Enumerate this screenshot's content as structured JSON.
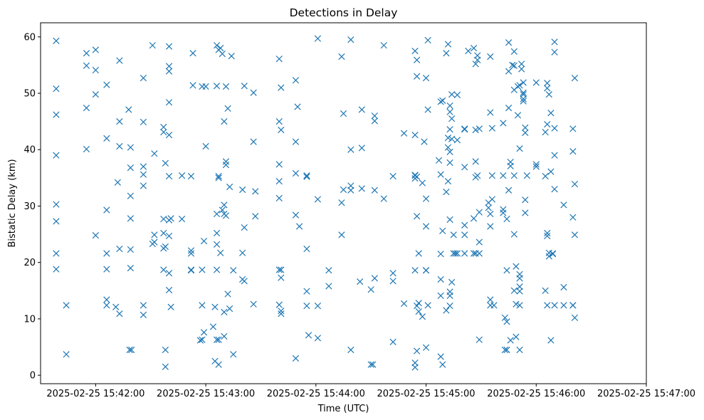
{
  "chart_data": {
    "type": "scatter",
    "title": "Detections in Delay",
    "xlabel": "Time (UTC)",
    "ylabel": "Bistatic Delay (km)",
    "marker": "x",
    "color": "#1f77b4",
    "x_unit": "seconds after 2025-02-25 15:41:30",
    "xlim": [
      0,
      330
    ],
    "ylim": [
      -1.5,
      62.5
    ],
    "x_ticks": [
      {
        "value": 30,
        "label": "2025-02-25 15:42:00"
      },
      {
        "value": 90,
        "label": "2025-02-25 15:43:00"
      },
      {
        "value": 150,
        "label": "2025-02-25 15:44:00"
      },
      {
        "value": 210,
        "label": "2025-02-25 15:45:00"
      },
      {
        "value": 270,
        "label": "2025-02-25 15:46:00"
      },
      {
        "value": 330,
        "label": "2025-02-25 15:47:00"
      }
    ],
    "y_ticks": [
      {
        "value": 0,
        "label": "0"
      },
      {
        "value": 10,
        "label": "10"
      },
      {
        "value": 20,
        "label": "20"
      },
      {
        "value": 30,
        "label": "30"
      },
      {
        "value": 40,
        "label": "40"
      },
      {
        "value": 50,
        "label": "50"
      },
      {
        "value": 60,
        "label": "60"
      }
    ],
    "points": [
      [
        8.5,
        59.3
      ],
      [
        8.5,
        50.8
      ],
      [
        8.5,
        46.2
      ],
      [
        8.5,
        39.0
      ],
      [
        8.5,
        30.3
      ],
      [
        8.5,
        27.3
      ],
      [
        8.5,
        21.6
      ],
      [
        8.5,
        18.8
      ],
      [
        14,
        12.4
      ],
      [
        14,
        3.7
      ],
      [
        25,
        57.1
      ],
      [
        25,
        54.9
      ],
      [
        25,
        47.4
      ],
      [
        25,
        40.1
      ],
      [
        30,
        57.7
      ],
      [
        30,
        54.1
      ],
      [
        30,
        49.8
      ],
      [
        30,
        24.8
      ],
      [
        36,
        51.5
      ],
      [
        36,
        42.0
      ],
      [
        36,
        29.3
      ],
      [
        36,
        21.6
      ],
      [
        36,
        18.8
      ],
      [
        36,
        13.4
      ],
      [
        36,
        12.4
      ],
      [
        41,
        12.1
      ],
      [
        42,
        34.2
      ],
      [
        43,
        55.8
      ],
      [
        43,
        45.0
      ],
      [
        43,
        40.6
      ],
      [
        43,
        22.4
      ],
      [
        43,
        10.9
      ],
      [
        48,
        47.1
      ],
      [
        49,
        40.4
      ],
      [
        49,
        36.8
      ],
      [
        49,
        31.8
      ],
      [
        49,
        27.8
      ],
      [
        49,
        22.3
      ],
      [
        49,
        19.0
      ],
      [
        48.5,
        4.5
      ],
      [
        49.5,
        4.5
      ],
      [
        56,
        52.7
      ],
      [
        56,
        44.9
      ],
      [
        56,
        37.0
      ],
      [
        56,
        35.6
      ],
      [
        56,
        33.6
      ],
      [
        56,
        12.4
      ],
      [
        56,
        10.7
      ],
      [
        61,
        58.5
      ],
      [
        62,
        39.3
      ],
      [
        62,
        24.9
      ],
      [
        62,
        23.6
      ],
      [
        61,
        23.3
      ],
      [
        67,
        25.2
      ],
      [
        67,
        27.7
      ],
      [
        67,
        43.1
      ],
      [
        67,
        44.0
      ],
      [
        68,
        37.6
      ],
      [
        68,
        22.8
      ],
      [
        67,
        22.5
      ],
      [
        67,
        18.7
      ],
      [
        68,
        4.5
      ],
      [
        68,
        1.5
      ],
      [
        70,
        58.3
      ],
      [
        70,
        54.8
      ],
      [
        70,
        53.9
      ],
      [
        70,
        48.4
      ],
      [
        70,
        42.6
      ],
      [
        70,
        35.3
      ],
      [
        70,
        27.5
      ],
      [
        70,
        24.7
      ],
      [
        70,
        18.1
      ],
      [
        70,
        15.1
      ],
      [
        71,
        12.1
      ],
      [
        71,
        27.8
      ],
      [
        77,
        35.4
      ],
      [
        77,
        27.7
      ],
      [
        83,
        57.1
      ],
      [
        83,
        51.4
      ],
      [
        82,
        35.3
      ],
      [
        82,
        22.1
      ],
      [
        82,
        21.6
      ],
      [
        82,
        18.7
      ],
      [
        82,
        18.6
      ],
      [
        88,
        51.2
      ],
      [
        88,
        12.4
      ],
      [
        88,
        18.7
      ],
      [
        87,
        6.2
      ],
      [
        88,
        6.3
      ],
      [
        89,
        7.6
      ],
      [
        89,
        23.8
      ],
      [
        90,
        40.6
      ],
      [
        90,
        51.2
      ],
      [
        96,
        58.5
      ],
      [
        98,
        58.0
      ],
      [
        97,
        57.7
      ],
      [
        99,
        57.0
      ],
      [
        96,
        51.3
      ],
      [
        101,
        51.2
      ],
      [
        104,
        56.6
      ],
      [
        102,
        47.3
      ],
      [
        100,
        45.0
      ],
      [
        101,
        37.9
      ],
      [
        101,
        37.3
      ],
      [
        103,
        33.4
      ],
      [
        97,
        35.3
      ],
      [
        97,
        35.0
      ],
      [
        96,
        28.6
      ],
      [
        100,
        30.2
      ],
      [
        99,
        29.3
      ],
      [
        101,
        28.3
      ],
      [
        100,
        28.6
      ],
      [
        96,
        25.2
      ],
      [
        96,
        23.2
      ],
      [
        96,
        18.7
      ],
      [
        98,
        21.7
      ],
      [
        95,
        12.1
      ],
      [
        100,
        11.2
      ],
      [
        102,
        14.4
      ],
      [
        103,
        11.8
      ],
      [
        105,
        18.6
      ],
      [
        97,
        6.3
      ],
      [
        96,
        6.3
      ],
      [
        100,
        6.9
      ],
      [
        94,
        8.6
      ],
      [
        95,
        2.5
      ],
      [
        97,
        1.9
      ],
      [
        105,
        3.7
      ],
      [
        110,
        32.9
      ],
      [
        111,
        26.2
      ],
      [
        110,
        21.7
      ],
      [
        110,
        17.0
      ],
      [
        111,
        16.7
      ],
      [
        111,
        51.3
      ],
      [
        116,
        50.1
      ],
      [
        116,
        41.4
      ],
      [
        117,
        32.6
      ],
      [
        117,
        28.2
      ],
      [
        116,
        12.6
      ],
      [
        130,
        56.1
      ],
      [
        131,
        51.0
      ],
      [
        130,
        45.0
      ],
      [
        131,
        43.5
      ],
      [
        130,
        37.4
      ],
      [
        130,
        34.4
      ],
      [
        130,
        31.4
      ],
      [
        130,
        18.7
      ],
      [
        131,
        18.7
      ],
      [
        131,
        17.3
      ],
      [
        130,
        12.5
      ],
      [
        131,
        11.4
      ],
      [
        131,
        10.9
      ],
      [
        139,
        52.3
      ],
      [
        139,
        41.4
      ],
      [
        139,
        35.8
      ],
      [
        139,
        28.4
      ],
      [
        141,
        26.4
      ],
      [
        140,
        47.6
      ],
      [
        145,
        35.4
      ],
      [
        145,
        35.2
      ],
      [
        145,
        22.4
      ],
      [
        145,
        14.9
      ],
      [
        145,
        12.3
      ],
      [
        146,
        7.1
      ],
      [
        139,
        3.0
      ],
      [
        151,
        59.7
      ],
      [
        151,
        31.2
      ],
      [
        151,
        12.3
      ],
      [
        151,
        6.6
      ],
      [
        157,
        18.6
      ],
      [
        157,
        15.8
      ],
      [
        164,
        56.5
      ],
      [
        165,
        46.4
      ],
      [
        165,
        32.9
      ],
      [
        164,
        30.6
      ],
      [
        164,
        24.9
      ],
      [
        169,
        59.5
      ],
      [
        169,
        40.0
      ],
      [
        169,
        33.6
      ],
      [
        169,
        32.8
      ],
      [
        169,
        4.5
      ],
      [
        175,
        47.1
      ],
      [
        175,
        40.3
      ],
      [
        175,
        33.1
      ],
      [
        174,
        16.6
      ],
      [
        180,
        15.2
      ],
      [
        180,
        1.9
      ],
      [
        181,
        1.9
      ],
      [
        182,
        46.0
      ],
      [
        182,
        45.1
      ],
      [
        182,
        17.2
      ],
      [
        182,
        32.8
      ],
      [
        187,
        31.3
      ],
      [
        187,
        58.5
      ],
      [
        192,
        35.3
      ],
      [
        192,
        18.1
      ],
      [
        192,
        16.7
      ],
      [
        192,
        5.9
      ],
      [
        198,
        12.7
      ],
      [
        198,
        42.9
      ],
      [
        204,
        57.5
      ],
      [
        205,
        55.9
      ],
      [
        205,
        53.0
      ],
      [
        204,
        35.5
      ],
      [
        204,
        35.4
      ],
      [
        205,
        35.2
      ],
      [
        204,
        34.9
      ],
      [
        204,
        42.6
      ],
      [
        205,
        28.2
      ],
      [
        206,
        21.6
      ],
      [
        204,
        18.6
      ],
      [
        205,
        12.3
      ],
      [
        206,
        12.8
      ],
      [
        206,
        11.3
      ],
      [
        208,
        10.4
      ],
      [
        205,
        4.3
      ],
      [
        204,
        2.2
      ],
      [
        204,
        1.4
      ],
      [
        208,
        34.1
      ],
      [
        209,
        41.4
      ],
      [
        210,
        31.3
      ],
      [
        210,
        26.4
      ],
      [
        210,
        18.6
      ],
      [
        210,
        18.6
      ],
      [
        211,
        12.4
      ],
      [
        210,
        4.9
      ],
      [
        211,
        59.4
      ],
      [
        210,
        52.7
      ],
      [
        211,
        47.1
      ],
      [
        218,
        48.5
      ],
      [
        219,
        48.7
      ],
      [
        217,
        38.1
      ],
      [
        218,
        35.6
      ],
      [
        219,
        25.6
      ],
      [
        218,
        21.5
      ],
      [
        218,
        17.0
      ],
      [
        218,
        14.1
      ],
      [
        218,
        3.3
      ],
      [
        219,
        1.9
      ],
      [
        221,
        57.1
      ],
      [
        222,
        58.7
      ],
      [
        224,
        49.8
      ],
      [
        223,
        47.8
      ],
      [
        223,
        46.7
      ],
      [
        224,
        45.5
      ],
      [
        222,
        42.1
      ],
      [
        223,
        37.7
      ],
      [
        222,
        34.4
      ],
      [
        221,
        32.5
      ],
      [
        222,
        40.4
      ],
      [
        223,
        39.6
      ],
      [
        224,
        41.9
      ],
      [
        223,
        43.6
      ],
      [
        223,
        27.6
      ],
      [
        225,
        24.9
      ],
      [
        225,
        21.6
      ],
      [
        224,
        16.5
      ],
      [
        223,
        14.1
      ],
      [
        223,
        14.8
      ],
      [
        223,
        12.3
      ],
      [
        221,
        11.5
      ],
      [
        227,
        49.7
      ],
      [
        226,
        21.6
      ],
      [
        227,
        21.6
      ],
      [
        227,
        41.7
      ],
      [
        231,
        43.6
      ],
      [
        231,
        43.7
      ],
      [
        231,
        36.9
      ],
      [
        231,
        26.6
      ],
      [
        231,
        24.9
      ],
      [
        231,
        21.6
      ],
      [
        233,
        57.5
      ],
      [
        236,
        21.6
      ],
      [
        237,
        21.6
      ],
      [
        237,
        43.5
      ],
      [
        237,
        37.9
      ],
      [
        237,
        35.1
      ],
      [
        236,
        27.8
      ],
      [
        236,
        58.0
      ],
      [
        237,
        55.2
      ],
      [
        238,
        55.9
      ],
      [
        238,
        56.7
      ],
      [
        239,
        43.7
      ],
      [
        238,
        35.4
      ],
      [
        239,
        28.9
      ],
      [
        239,
        23.6
      ],
      [
        239,
        21.6
      ],
      [
        239,
        6.3
      ],
      [
        245,
        56.5
      ],
      [
        246,
        43.8
      ],
      [
        246,
        35.4
      ],
      [
        245,
        46.6
      ],
      [
        244,
        30.6
      ],
      [
        244,
        29.7
      ],
      [
        245,
        28.6
      ],
      [
        245,
        26.4
      ],
      [
        245,
        13.4
      ],
      [
        245,
        12.4
      ],
      [
        246,
        31.2
      ],
      [
        247,
        12.4
      ],
      [
        252,
        44.7
      ],
      [
        252,
        35.4
      ],
      [
        252,
        29.4
      ],
      [
        252,
        28.8
      ],
      [
        254,
        27.7
      ],
      [
        253,
        10.2
      ],
      [
        253,
        4.5
      ],
      [
        254,
        4.5
      ],
      [
        254,
        9.5
      ],
      [
        254,
        18.6
      ],
      [
        255,
        32.8
      ],
      [
        255,
        47.4
      ],
      [
        255,
        59.0
      ],
      [
        255,
        53.9
      ],
      [
        256,
        37.8
      ],
      [
        256,
        37.1
      ],
      [
        257,
        55.0
      ],
      [
        258,
        57.4
      ],
      [
        258,
        54.9
      ],
      [
        258,
        50.6
      ],
      [
        258,
        35.4
      ],
      [
        258,
        25.0
      ],
      [
        259,
        19.3
      ],
      [
        259,
        12.6
      ],
      [
        258,
        15.0
      ],
      [
        256,
        6.2
      ],
      [
        259,
        6.8
      ],
      [
        260,
        51.2
      ],
      [
        260,
        46.1
      ],
      [
        261,
        51.4
      ],
      [
        261,
        40.2
      ],
      [
        261,
        17.9
      ],
      [
        261,
        17.2
      ],
      [
        261,
        15.7
      ],
      [
        261,
        14.9
      ],
      [
        261,
        12.4
      ],
      [
        261,
        4.5
      ],
      [
        262,
        55.2
      ],
      [
        262,
        54.3
      ],
      [
        263,
        51.9
      ],
      [
        263,
        50.1
      ],
      [
        263,
        49.8
      ],
      [
        263,
        49.0
      ],
      [
        263,
        48.6
      ],
      [
        264,
        43.9
      ],
      [
        264,
        43.0
      ],
      [
        264,
        31.1
      ],
      [
        264,
        28.8
      ],
      [
        265,
        35.4
      ],
      [
        270,
        51.9
      ],
      [
        270,
        37.4
      ],
      [
        270,
        37.0
      ],
      [
        275,
        43.1
      ],
      [
        275,
        35.3
      ],
      [
        275,
        15.0
      ],
      [
        276,
        44.5
      ],
      [
        276,
        12.4
      ],
      [
        276,
        51.8
      ],
      [
        276,
        50.9
      ],
      [
        277,
        49.8
      ],
      [
        276,
        25.2
      ],
      [
        276,
        24.7
      ],
      [
        277,
        21.7
      ],
      [
        277,
        21.1
      ],
      [
        278,
        36.1
      ],
      [
        278,
        46.5
      ],
      [
        278,
        6.2
      ],
      [
        279,
        21.5
      ],
      [
        279,
        21.6
      ],
      [
        280,
        59.1
      ],
      [
        280,
        57.3
      ],
      [
        280,
        43.8
      ],
      [
        280,
        39.0
      ],
      [
        280,
        33.0
      ],
      [
        280,
        12.4
      ],
      [
        285,
        30.2
      ],
      [
        285,
        15.6
      ],
      [
        285,
        12.4
      ],
      [
        290,
        43.7
      ],
      [
        290,
        39.7
      ],
      [
        290,
        28.0
      ],
      [
        290,
        12.4
      ],
      [
        290,
        12.4
      ],
      [
        291,
        52.7
      ],
      [
        291,
        33.9
      ],
      [
        291,
        24.9
      ],
      [
        291,
        10.2
      ]
    ]
  }
}
